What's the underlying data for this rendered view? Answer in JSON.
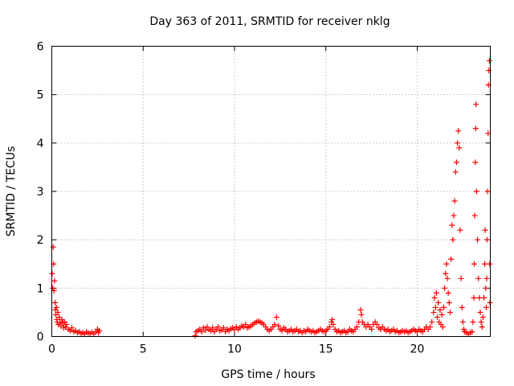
{
  "chart_data": {
    "type": "scatter",
    "title": "Day 363 of 2011, SRMTID for receiver nklg",
    "xlabel": "GPS time / hours",
    "ylabel": "SRMTID / TECUs",
    "xlim": [
      0,
      24
    ],
    "ylim": [
      0,
      6
    ],
    "xticks": [
      0,
      5,
      10,
      15,
      20
    ],
    "yticks": [
      0,
      1,
      2,
      3,
      4,
      5,
      6
    ],
    "grid": true,
    "marker": "+",
    "color": "#ff0000",
    "series": [
      {
        "name": "SRMTID",
        "points": [
          [
            0.02,
            1.3
          ],
          [
            0.05,
            1.0
          ],
          [
            0.08,
            1.85
          ],
          [
            0.1,
            1.5
          ],
          [
            0.12,
            0.95
          ],
          [
            0.15,
            1.15
          ],
          [
            0.18,
            0.7
          ],
          [
            0.2,
            0.55
          ],
          [
            0.22,
            0.45
          ],
          [
            0.25,
            0.6
          ],
          [
            0.28,
            0.35
          ],
          [
            0.3,
            0.3
          ],
          [
            0.33,
            0.5
          ],
          [
            0.36,
            0.25
          ],
          [
            0.4,
            0.4
          ],
          [
            0.45,
            0.3
          ],
          [
            0.5,
            0.22
          ],
          [
            0.55,
            0.35
          ],
          [
            0.6,
            0.28
          ],
          [
            0.65,
            0.18
          ],
          [
            0.7,
            0.3
          ],
          [
            0.75,
            0.2
          ],
          [
            0.8,
            0.25
          ],
          [
            0.9,
            0.15
          ],
          [
            1.0,
            0.12
          ],
          [
            1.1,
            0.18
          ],
          [
            1.2,
            0.1
          ],
          [
            1.3,
            0.12
          ],
          [
            1.4,
            0.08
          ],
          [
            1.5,
            0.1
          ],
          [
            1.6,
            0.06
          ],
          [
            1.7,
            0.08
          ],
          [
            1.8,
            0.05
          ],
          [
            1.9,
            0.1
          ],
          [
            2.0,
            0.07
          ],
          [
            2.1,
            0.06
          ],
          [
            2.2,
            0.09
          ],
          [
            2.3,
            0.05
          ],
          [
            2.4,
            0.1
          ],
          [
            2.5,
            0.15
          ],
          [
            2.55,
            0.08
          ],
          [
            2.6,
            0.12
          ],
          [
            7.85,
            0.02
          ],
          [
            7.9,
            0.1
          ],
          [
            8.0,
            0.12
          ],
          [
            8.1,
            0.15
          ],
          [
            8.2,
            0.1
          ],
          [
            8.3,
            0.18
          ],
          [
            8.4,
            0.13
          ],
          [
            8.5,
            0.2
          ],
          [
            8.6,
            0.15
          ],
          [
            8.7,
            0.12
          ],
          [
            8.8,
            0.18
          ],
          [
            8.9,
            0.1
          ],
          [
            9.0,
            0.15
          ],
          [
            9.1,
            0.2
          ],
          [
            9.2,
            0.12
          ],
          [
            9.3,
            0.14
          ],
          [
            9.4,
            0.18
          ],
          [
            9.5,
            0.1
          ],
          [
            9.6,
            0.15
          ],
          [
            9.7,
            0.12
          ],
          [
            9.8,
            0.16
          ],
          [
            9.9,
            0.18
          ],
          [
            10.0,
            0.14
          ],
          [
            10.1,
            0.2
          ],
          [
            10.2,
            0.15
          ],
          [
            10.3,
            0.18
          ],
          [
            10.4,
            0.22
          ],
          [
            10.5,
            0.2
          ],
          [
            10.6,
            0.25
          ],
          [
            10.7,
            0.18
          ],
          [
            10.8,
            0.2
          ],
          [
            10.9,
            0.22
          ],
          [
            11.0,
            0.25
          ],
          [
            11.1,
            0.28
          ],
          [
            11.2,
            0.3
          ],
          [
            11.3,
            0.32
          ],
          [
            11.4,
            0.3
          ],
          [
            11.5,
            0.28
          ],
          [
            11.6,
            0.25
          ],
          [
            11.7,
            0.2
          ],
          [
            11.8,
            0.15
          ],
          [
            11.9,
            0.12
          ],
          [
            12.0,
            0.15
          ],
          [
            12.1,
            0.2
          ],
          [
            12.2,
            0.25
          ],
          [
            12.3,
            0.4
          ],
          [
            12.4,
            0.22
          ],
          [
            12.5,
            0.15
          ],
          [
            12.6,
            0.12
          ],
          [
            12.7,
            0.18
          ],
          [
            12.8,
            0.15
          ],
          [
            12.9,
            0.1
          ],
          [
            13.0,
            0.12
          ],
          [
            13.1,
            0.15
          ],
          [
            13.2,
            0.1
          ],
          [
            13.3,
            0.12
          ],
          [
            13.4,
            0.15
          ],
          [
            13.5,
            0.1
          ],
          [
            13.6,
            0.12
          ],
          [
            13.7,
            0.08
          ],
          [
            13.8,
            0.12
          ],
          [
            13.9,
            0.1
          ],
          [
            14.0,
            0.15
          ],
          [
            14.1,
            0.12
          ],
          [
            14.2,
            0.1
          ],
          [
            14.3,
            0.12
          ],
          [
            14.4,
            0.08
          ],
          [
            14.5,
            0.1
          ],
          [
            14.6,
            0.12
          ],
          [
            14.7,
            0.15
          ],
          [
            14.8,
            0.12
          ],
          [
            14.9,
            0.1
          ],
          [
            15.0,
            0.12
          ],
          [
            15.1,
            0.15
          ],
          [
            15.2,
            0.2
          ],
          [
            15.3,
            0.3
          ],
          [
            15.35,
            0.35
          ],
          [
            15.4,
            0.25
          ],
          [
            15.5,
            0.15
          ],
          [
            15.6,
            0.1
          ],
          [
            15.7,
            0.12
          ],
          [
            15.8,
            0.08
          ],
          [
            15.9,
            0.1
          ],
          [
            16.0,
            0.12
          ],
          [
            16.1,
            0.08
          ],
          [
            16.2,
            0.1
          ],
          [
            16.3,
            0.15
          ],
          [
            16.4,
            0.12
          ],
          [
            16.5,
            0.1
          ],
          [
            16.6,
            0.15
          ],
          [
            16.7,
            0.2
          ],
          [
            16.8,
            0.3
          ],
          [
            16.9,
            0.55
          ],
          [
            16.95,
            0.45
          ],
          [
            17.0,
            0.3
          ],
          [
            17.1,
            0.25
          ],
          [
            17.2,
            0.2
          ],
          [
            17.3,
            0.25
          ],
          [
            17.4,
            0.2
          ],
          [
            17.5,
            0.15
          ],
          [
            17.6,
            0.25
          ],
          [
            17.7,
            0.3
          ],
          [
            17.8,
            0.25
          ],
          [
            17.9,
            0.18
          ],
          [
            18.0,
            0.15
          ],
          [
            18.1,
            0.2
          ],
          [
            18.2,
            0.15
          ],
          [
            18.3,
            0.12
          ],
          [
            18.4,
            0.15
          ],
          [
            18.5,
            0.1
          ],
          [
            18.6,
            0.12
          ],
          [
            18.7,
            0.15
          ],
          [
            18.8,
            0.1
          ],
          [
            18.9,
            0.12
          ],
          [
            19.0,
            0.08
          ],
          [
            19.1,
            0.1
          ],
          [
            19.2,
            0.12
          ],
          [
            19.3,
            0.1
          ],
          [
            19.4,
            0.12
          ],
          [
            19.5,
            0.08
          ],
          [
            19.6,
            0.1
          ],
          [
            19.7,
            0.12
          ],
          [
            19.8,
            0.15
          ],
          [
            19.9,
            0.12
          ],
          [
            20.0,
            0.1
          ],
          [
            20.1,
            0.15
          ],
          [
            20.2,
            0.12
          ],
          [
            20.3,
            0.1
          ],
          [
            20.4,
            0.15
          ],
          [
            20.5,
            0.2
          ],
          [
            20.6,
            0.15
          ],
          [
            20.7,
            0.2
          ],
          [
            20.8,
            0.3
          ],
          [
            20.9,
            0.5
          ],
          [
            20.95,
            0.8
          ],
          [
            21.0,
            0.6
          ],
          [
            21.05,
            0.9
          ],
          [
            21.1,
            0.4
          ],
          [
            21.15,
            0.7
          ],
          [
            21.2,
            0.3
          ],
          [
            21.25,
            0.55
          ],
          [
            21.3,
            0.25
          ],
          [
            21.35,
            0.45
          ],
          [
            21.4,
            0.2
          ],
          [
            21.45,
            0.6
          ],
          [
            21.5,
            1.0
          ],
          [
            21.55,
            1.3
          ],
          [
            21.6,
            1.5
          ],
          [
            21.65,
            1.2
          ],
          [
            21.7,
            0.9
          ],
          [
            21.75,
            0.7
          ],
          [
            21.8,
            0.5
          ],
          [
            21.85,
            1.6
          ],
          [
            21.9,
            2.3
          ],
          [
            21.95,
            2.0
          ],
          [
            22.0,
            2.5
          ],
          [
            22.05,
            2.8
          ],
          [
            22.1,
            3.4
          ],
          [
            22.15,
            3.6
          ],
          [
            22.2,
            4.0
          ],
          [
            22.25,
            4.25
          ],
          [
            22.3,
            3.9
          ],
          [
            22.35,
            2.2
          ],
          [
            22.4,
            1.2
          ],
          [
            22.45,
            0.6
          ],
          [
            22.5,
            0.3
          ],
          [
            22.55,
            0.15
          ],
          [
            22.6,
            0.1
          ],
          [
            22.7,
            0.08
          ],
          [
            22.8,
            0.05
          ],
          [
            22.9,
            0.08
          ],
          [
            23.0,
            0.1
          ],
          [
            23.05,
            0.3
          ],
          [
            23.1,
            0.8
          ],
          [
            23.12,
            1.5
          ],
          [
            23.15,
            2.5
          ],
          [
            23.18,
            3.6
          ],
          [
            23.2,
            4.3
          ],
          [
            23.22,
            4.8
          ],
          [
            23.25,
            3.0
          ],
          [
            23.3,
            2.0
          ],
          [
            23.35,
            1.2
          ],
          [
            23.4,
            0.8
          ],
          [
            23.45,
            0.5
          ],
          [
            23.5,
            0.3
          ],
          [
            23.55,
            0.2
          ],
          [
            23.6,
            0.4
          ],
          [
            23.65,
            0.8
          ],
          [
            23.7,
            1.5
          ],
          [
            23.72,
            2.2
          ],
          [
            23.75,
            1.0
          ],
          [
            23.78,
            0.6
          ],
          [
            23.8,
            1.2
          ],
          [
            23.82,
            2.0
          ],
          [
            23.85,
            3.0
          ],
          [
            23.88,
            4.2
          ],
          [
            23.9,
            5.2
          ],
          [
            23.92,
            5.5
          ],
          [
            23.95,
            5.7
          ],
          [
            23.97,
            1.5
          ],
          [
            23.98,
            0.7
          ]
        ]
      }
    ]
  }
}
